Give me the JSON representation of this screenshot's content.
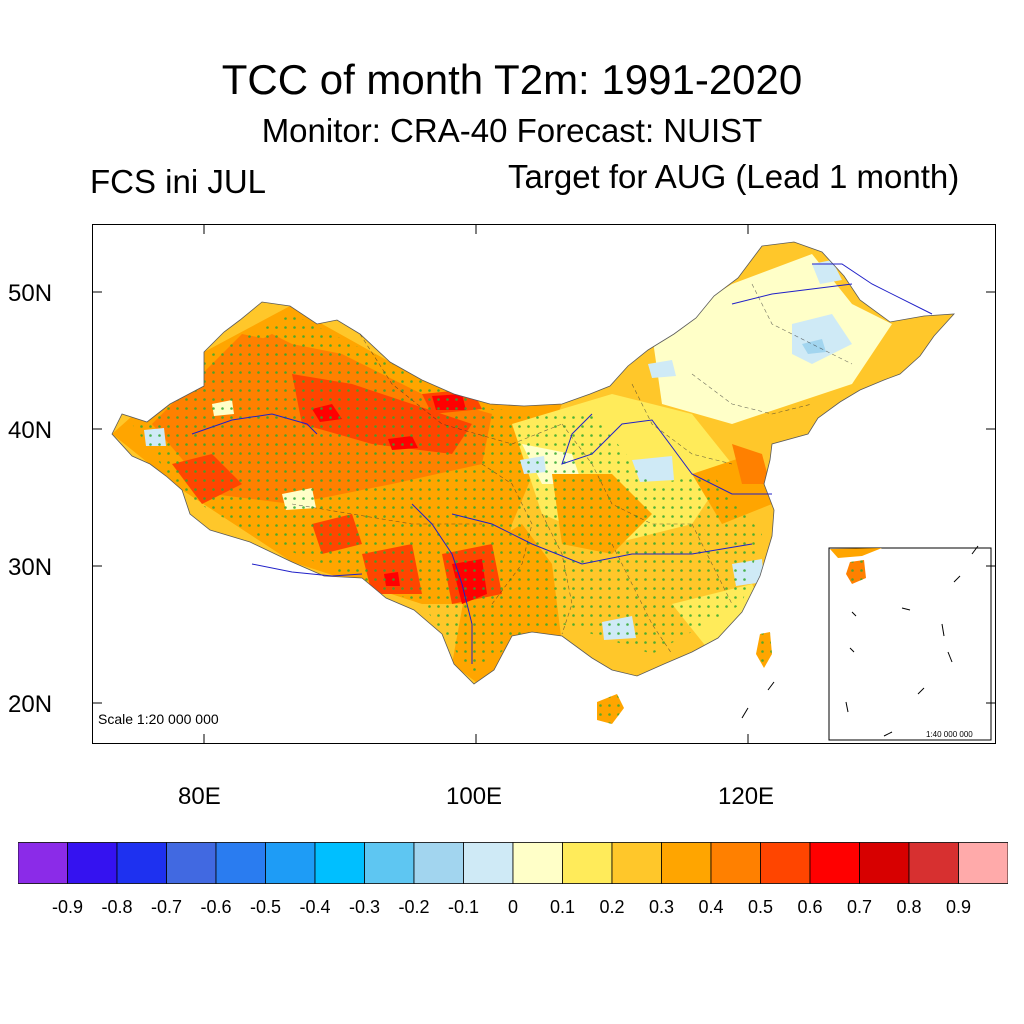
{
  "title": "TCC of month T2m: 1991-2020",
  "subtitle": "Monitor: CRA-40   Forecast: NUIST",
  "left_label": "FCS ini JUL",
  "right_label": "Target for AUG (Lead 1 month)",
  "map": {
    "lat_labels": [
      "50N",
      "40N",
      "30N",
      "20N"
    ],
    "lon_labels": [
      "80E",
      "100E",
      "120E"
    ],
    "scale_text": "Scale 1:20 000 000",
    "inset_scale_text": "1:40 000 000"
  },
  "colorbar": {
    "colors": [
      "#8b2be8",
      "#3512f0",
      "#1e31f0",
      "#4169e1",
      "#2a7cf0",
      "#1e9cf6",
      "#00bfff",
      "#5ec6f2",
      "#a2d5ef",
      "#cfeaf6",
      "#ffffc8",
      "#ffeb5a",
      "#ffc72a",
      "#ffa500",
      "#ff8000",
      "#ff4500",
      "#ff0000",
      "#d70000",
      "#d73030",
      "#ffaaaa"
    ],
    "labels": [
      "-0.9",
      "-0.8",
      "-0.7",
      "-0.6",
      "-0.5",
      "-0.4",
      "-0.3",
      "-0.2",
      "-0.1",
      "0",
      "0.1",
      "0.2",
      "0.3",
      "0.4",
      "0.5",
      "0.6",
      "0.7",
      "0.8",
      "0.9"
    ]
  }
}
